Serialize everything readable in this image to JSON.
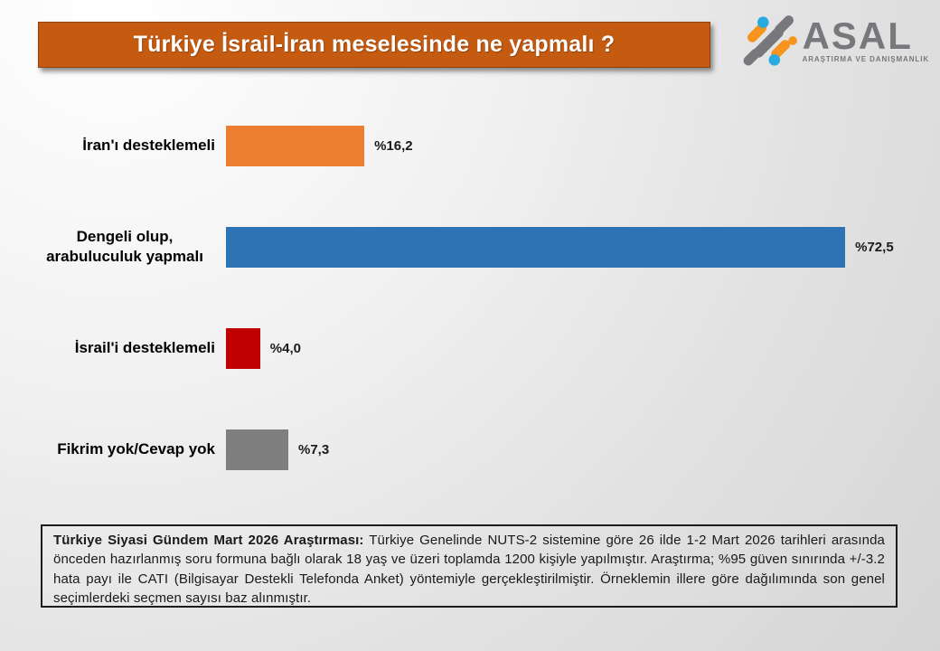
{
  "title": "Türkiye İsrail-İran meselesinde ne yapmalı ?",
  "logo": {
    "name": "ASAL",
    "tagline": "ARAŞTIRMA VE DANIŞMANLIK"
  },
  "chart_data": {
    "type": "bar",
    "orientation": "horizontal",
    "title": "Türkiye İsrail-İran meselesinde ne yapmalı ?",
    "categories": [
      "İran'ı desteklemeli",
      "Dengeli olup, arabuluculuk yapmalı",
      "İsrail'i desteklemeli",
      "Fikrim yok/Cevap yok"
    ],
    "values": [
      16.2,
      72.5,
      4.0,
      7.3
    ],
    "value_labels": [
      "%16,2",
      "%72,5",
      "%4,0",
      "%7,3"
    ],
    "bar_colors": [
      "#ED7D31",
      "#2E74B5",
      "#C00000",
      "#7F7F7F"
    ],
    "xlim": [
      0,
      100
    ],
    "grid": false,
    "legend": false,
    "value_label_position": "end-of-bar"
  },
  "footnote": {
    "bold_prefix": "Türkiye Siyasi Gündem Mart 2026 Araştırması:",
    "text": " Türkiye Genelinde NUTS-2 sistemine göre 26 ilde 1-2 Mart 2026 tarihleri arasında önceden hazırlanmış soru formuna bağlı olarak 18 yaş ve üzeri toplamda 1200 kişiyle yapılmıştır. Araştırma; %95 güven sınırında +/-3.2 hata payı ile CATI (Bilgisayar Destekli Telefonda Anket) yöntemiyle gerçekleştirilmiştir. Örneklemin illere göre dağılımında son genel seçimlerdeki seçmen sayısı baz alınmıştır."
  },
  "colors": {
    "banner_bg": "#C55A11",
    "banner_border": "#8E4109",
    "logo_gray": "#77787B",
    "logo_blue": "#29ABE2",
    "logo_orange": "#F7941D",
    "page_bg_light": "#FFFFFF",
    "page_bg_dark": "#D5D5D5"
  }
}
